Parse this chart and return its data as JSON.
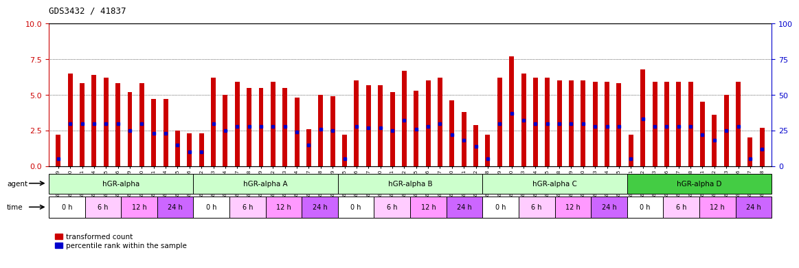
{
  "title": "GDS3432 / 41837",
  "samples": [
    "GSM154259",
    "GSM154260",
    "GSM154261",
    "GSM154274",
    "GSM154275",
    "GSM154276",
    "GSM154289",
    "GSM154290",
    "GSM154291",
    "GSM154304",
    "GSM154305",
    "GSM154306",
    "GSM154262",
    "GSM154263",
    "GSM154264",
    "GSM154277",
    "GSM154278",
    "GSM154279",
    "GSM154292",
    "GSM154293",
    "GSM154294",
    "GSM154307",
    "GSM154308",
    "GSM154309",
    "GSM154265",
    "GSM154266",
    "GSM154267",
    "GSM154280",
    "GSM154281",
    "GSM154282",
    "GSM154295",
    "GSM154296",
    "GSM154297",
    "GSM154310",
    "GSM154311",
    "GSM154312",
    "GSM154268",
    "GSM154269",
    "GSM154270",
    "GSM154283",
    "GSM154284",
    "GSM154285",
    "GSM154298",
    "GSM154299",
    "GSM154300",
    "GSM154313",
    "GSM154314",
    "GSM154315",
    "GSM154271",
    "GSM154272",
    "GSM154273",
    "GSM154286",
    "GSM154287",
    "GSM154288",
    "GSM154301",
    "GSM154302",
    "GSM154303",
    "GSM154316",
    "GSM154317",
    "GSM154318"
  ],
  "red_values": [
    2.2,
    6.5,
    5.8,
    6.4,
    6.2,
    5.8,
    5.2,
    5.8,
    4.7,
    4.7,
    2.5,
    2.3,
    2.3,
    6.2,
    5.0,
    5.9,
    5.5,
    5.5,
    5.9,
    5.5,
    4.8,
    2.6,
    5.0,
    4.9,
    2.2,
    6.0,
    5.7,
    5.7,
    5.2,
    6.7,
    5.3,
    6.0,
    6.2,
    4.6,
    3.8,
    2.9,
    2.2,
    6.2,
    7.7,
    6.5,
    6.2,
    6.2,
    6.0,
    6.0,
    6.0,
    5.9,
    5.9,
    5.8,
    2.2,
    6.8,
    5.9,
    5.9,
    5.9,
    5.9,
    4.5,
    3.6,
    5.0,
    5.9,
    2.0,
    2.7
  ],
  "blue_values": [
    5,
    30,
    30,
    30,
    30,
    30,
    25,
    30,
    23,
    23,
    15,
    10,
    10,
    30,
    25,
    28,
    28,
    28,
    28,
    28,
    24,
    15,
    26,
    25,
    5,
    28,
    27,
    27,
    25,
    32,
    26,
    28,
    30,
    22,
    18,
    14,
    5,
    30,
    37,
    32,
    30,
    30,
    30,
    30,
    30,
    28,
    28,
    28,
    5,
    33,
    28,
    28,
    28,
    28,
    22,
    18,
    25,
    28,
    5,
    12
  ],
  "groups": [
    {
      "label": "hGR-alpha",
      "count": 12,
      "color": "#ccffcc"
    },
    {
      "label": "hGR-alpha A",
      "count": 12,
      "color": "#ccffcc"
    },
    {
      "label": "hGR-alpha B",
      "count": 12,
      "color": "#ccffcc"
    },
    {
      "label": "hGR-alpha C",
      "count": 12,
      "color": "#ccffcc"
    },
    {
      "label": "hGR-alpha D",
      "count": 12,
      "color": "#44cc44"
    }
  ],
  "time_labels": [
    "0 h",
    "6 h",
    "12 h",
    "24 h"
  ],
  "time_colors": [
    "#ffffff",
    "#ffccff",
    "#ff99ff",
    "#cc66ff"
  ],
  "ylim_left": [
    0,
    10
  ],
  "ylim_right": [
    0,
    100
  ],
  "yticks_left": [
    0,
    2.5,
    5.0,
    7.5,
    10
  ],
  "yticks_right": [
    0,
    25,
    50,
    75,
    100
  ],
  "left_tick_color": "#cc0000",
  "right_tick_color": "#0000cc",
  "bar_color_red": "#cc0000",
  "bar_color_blue": "#0000cc",
  "grid_values": [
    2.5,
    5.0,
    7.5
  ],
  "legend_red": "transformed count",
  "legend_blue": "percentile rank within the sample"
}
